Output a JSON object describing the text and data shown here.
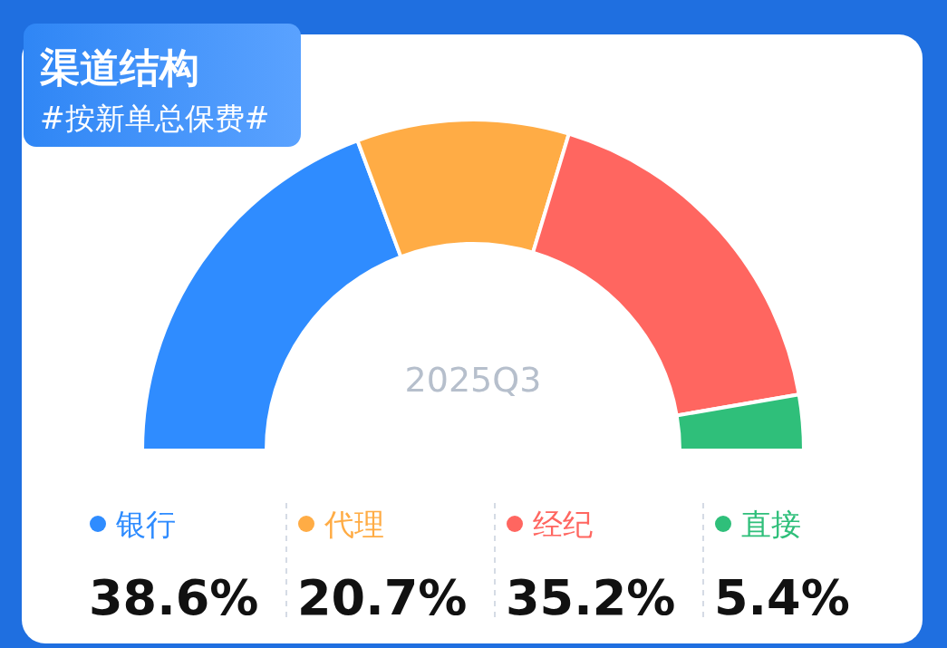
{
  "chart_data": {
    "type": "donut",
    "title": "渠道结构",
    "subtitle": "#按新单总保费#",
    "annotations": [
      "2025Q3"
    ],
    "categories": [
      "银行",
      "代理",
      "经纪",
      "直接"
    ],
    "values": [
      38.6,
      20.7,
      35.2,
      5.4
    ],
    "colors": [
      "#2f8cff",
      "#ffac45",
      "#ff6660",
      "#2fbf7a"
    ],
    "value_labels": [
      "38.6%",
      "20.7%",
      "35.2%",
      "5.4%"
    ],
    "legend": "bottom"
  }
}
